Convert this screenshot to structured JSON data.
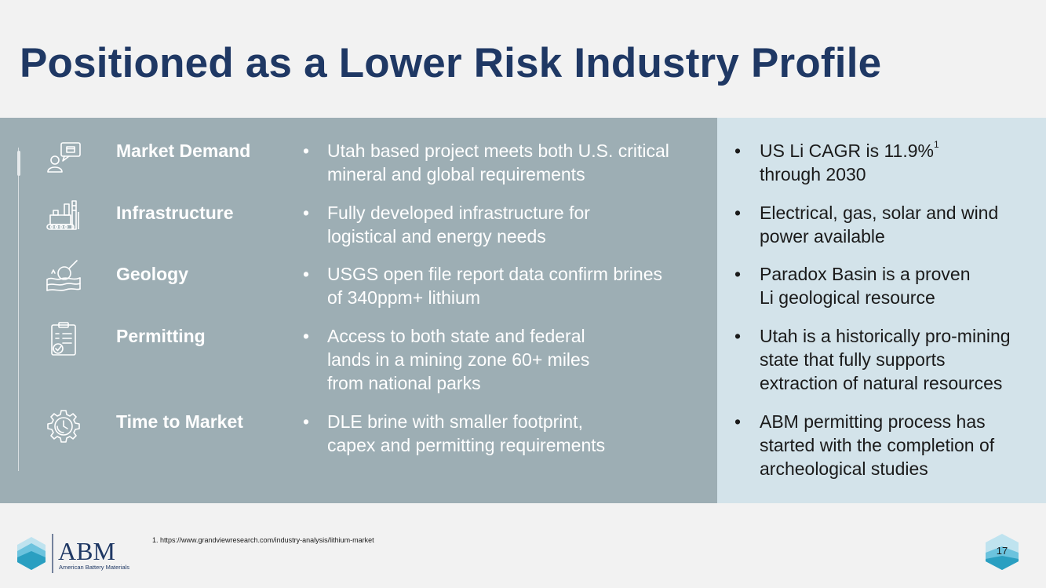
{
  "title": "Positioned as a Lower Risk Industry Profile",
  "rows": [
    {
      "icon": "chat-person-icon",
      "label": "Market Demand",
      "detail": [
        "Utah based project meets both U.S. critical",
        "mineral and global requirements"
      ],
      "fact": [
        "US Li CAGR is 11.9%",
        "through 2030"
      ],
      "fact_superscript": "1"
    },
    {
      "icon": "factory-icon",
      "label": "Infrastructure",
      "detail": [
        "Fully developed infrastructure for",
        "logistical and energy needs"
      ],
      "fact": [
        "Electrical, gas, solar and wind",
        "power available"
      ]
    },
    {
      "icon": "geology-magnifier-icon",
      "label": "Geology",
      "detail": [
        "USGS open file report data confirm brines",
        "of 340ppm+ lithium"
      ],
      "fact": [
        "Paradox Basin is a proven",
        "Li geological resource"
      ]
    },
    {
      "icon": "clipboard-check-icon",
      "label": "Permitting",
      "detail": [
        "Access to both state and federal",
        "lands in a mining zone 60+ miles",
        "from national parks"
      ],
      "fact": [
        "Utah is a historically pro-mining",
        "state that fully supports",
        "extraction of natural resources"
      ]
    },
    {
      "icon": "gear-clock-icon",
      "label": "Time to Market",
      "detail": [
        "DLE brine with smaller footprint,",
        "capex and permitting requirements"
      ],
      "fact": [
        "ABM permitting process has",
        "started with the completion of",
        "archeological studies"
      ]
    }
  ],
  "bullet": "•",
  "footnote": "1. https://www.grandviewresearch.com/industry-analysis/lithium-market",
  "logo": {
    "wordmark": "ABM",
    "tagline": "American Battery Materials"
  },
  "page_number": "17",
  "colors": {
    "title": "#1f3864",
    "band_left": "#9daeb4",
    "band_right": "#d3e3ea",
    "accent_teal": "#2a9fc1"
  }
}
